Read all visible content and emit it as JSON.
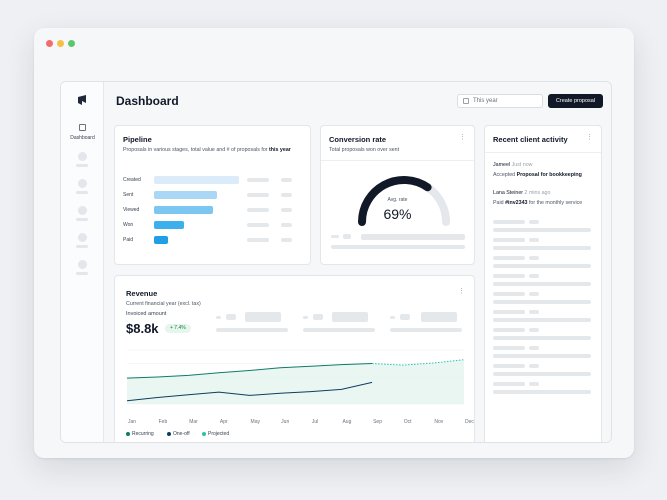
{
  "app": {
    "title": "Dashboard",
    "nav_label": "Dashboard"
  },
  "header": {
    "date_placeholder": "This year",
    "create_button": "Create proposal"
  },
  "pipeline": {
    "title": "Pipeline",
    "subtitle_pre": "Proposals in various stages, total value and # of proposals for ",
    "subtitle_bold": "this year",
    "stages": [
      {
        "label": "Created",
        "value": 1.0,
        "color": "#dcebfa"
      },
      {
        "label": "Sent",
        "value": 0.74,
        "color": "#a9d7f5"
      },
      {
        "label": "Viewed",
        "value": 0.69,
        "color": "#7cc6f2"
      },
      {
        "label": "Won",
        "value": 0.35,
        "color": "#3bb0ec"
      },
      {
        "label": "Paid",
        "value": 0.16,
        "color": "#1f9fe6"
      }
    ]
  },
  "conversion": {
    "title": "Conversion rate",
    "subtitle": "Total proposals won over sent",
    "gauge_label": "Avg. rate",
    "value_text": "69%",
    "value": 69
  },
  "activity": {
    "title": "Recent client activity",
    "items": [
      {
        "name": "Jameel",
        "time": "Just now",
        "action": "Accepted ",
        "bold": "Proposal for bookkeeping",
        "rest": ""
      },
      {
        "name": "Lana Steiner",
        "time": "2 mins ago",
        "action": "Paid ",
        "bold": "#inv2343",
        "rest": " for the monthly service"
      }
    ]
  },
  "revenue": {
    "title": "Revenue",
    "subtitle": "Current financial year (excl. tax)",
    "amount_label": "Invoiced amount",
    "amount": "$8.8k",
    "change": "+ 7.4%"
  },
  "chart_data": {
    "type": "line",
    "x": [
      "Jan",
      "Feb",
      "Mar",
      "Apr",
      "May",
      "Jun",
      "Jul",
      "Aug",
      "Sep",
      "Oct",
      "Nov",
      "Dec"
    ],
    "series": [
      {
        "name": "Recurring",
        "color": "#0e7c66",
        "values": [
          0.48,
          0.5,
          0.53,
          0.58,
          0.62,
          0.67,
          0.7,
          0.73,
          0.75,
          null,
          null,
          null
        ]
      },
      {
        "name": "One-off",
        "color": "#0f3d5e",
        "values": [
          0.06,
          0.12,
          0.17,
          0.22,
          0.16,
          0.2,
          0.23,
          0.27,
          0.4,
          null,
          null,
          null
        ]
      },
      {
        "name": "Projected",
        "color": "#2bc3a8",
        "values": [
          null,
          null,
          null,
          null,
          null,
          null,
          null,
          null,
          0.75,
          0.72,
          0.76,
          0.82
        ]
      }
    ]
  }
}
